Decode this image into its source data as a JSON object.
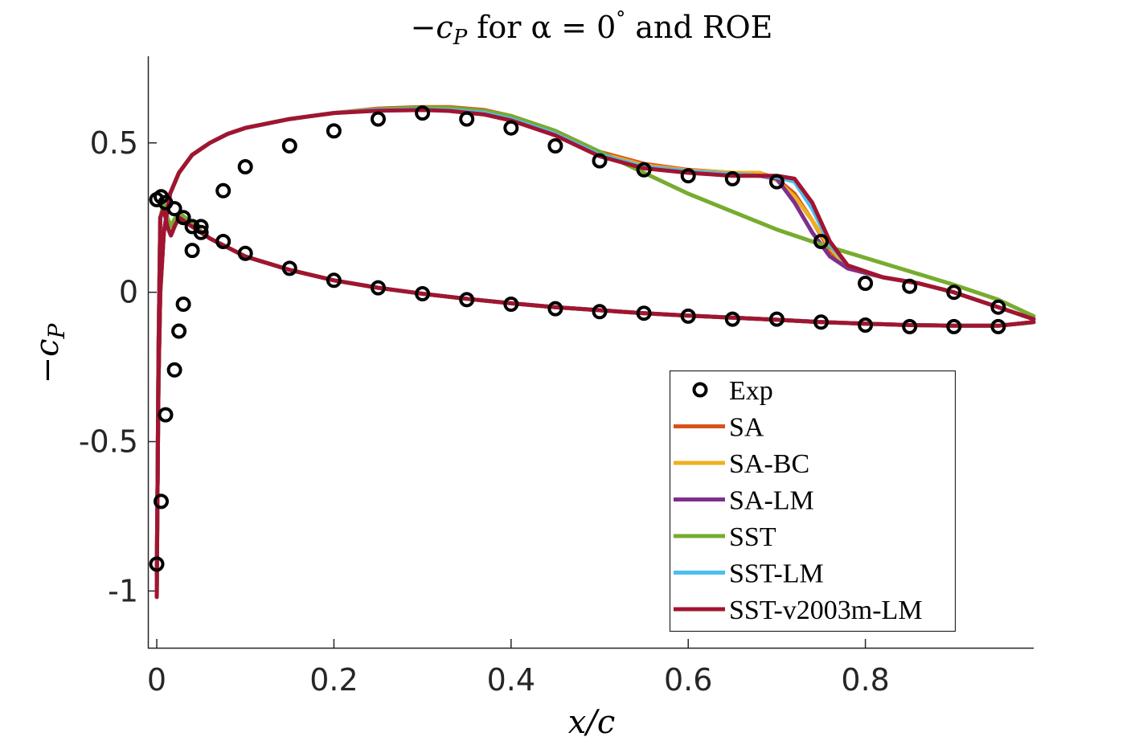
{
  "chart_data": {
    "type": "line",
    "title": "−c_P for α = 0° and ROE",
    "title_parts": {
      "lhs": "−c",
      "lhs_sub": "P",
      "mid": " for α = 0",
      "deg": "°",
      "rhs": " and ROE"
    },
    "xlabel": "x/c",
    "ylabel": "−c_P",
    "ylabel_parts": {
      "main": "−c",
      "sub": "P"
    },
    "xlim": [
      -0.01,
      0.99
    ],
    "ylim": [
      -1.19,
      0.79
    ],
    "xticks": [
      0,
      0.2,
      0.4,
      0.6,
      0.8
    ],
    "xtick_labels": [
      "0",
      "0.2",
      "0.4",
      "0.6",
      "0.8"
    ],
    "yticks": [
      -1,
      -0.5,
      0,
      0.5
    ],
    "ytick_labels": [
      "-1",
      "-0.5",
      "0",
      "0.5"
    ],
    "legend_position": "bottom-right",
    "legend": [
      "Exp",
      "SA",
      "SA-BC",
      "SA-LM",
      "SST",
      "SST-LM",
      "SST-v2003m-LM"
    ],
    "experimental": {
      "name": "Exp",
      "color": "#000000",
      "x": [
        0.0,
        0.005,
        0.01,
        0.02,
        0.03,
        0.04,
        0.05,
        0.075,
        0.1,
        0.15,
        0.2,
        0.25,
        0.3,
        0.35,
        0.4,
        0.45,
        0.5,
        0.55,
        0.6,
        0.65,
        0.7,
        0.75,
        0.8,
        0.85,
        0.9,
        0.95,
        0.0,
        0.005,
        0.01,
        0.02,
        0.025,
        0.03,
        0.04,
        0.05,
        0.075,
        0.1,
        0.15,
        0.2,
        0.25,
        0.3,
        0.35,
        0.4,
        0.45,
        0.5,
        0.55,
        0.6,
        0.65,
        0.7,
        0.75,
        0.8,
        0.85,
        0.9,
        0.95
      ],
      "y": [
        0.31,
        0.32,
        0.3,
        0.28,
        0.25,
        0.22,
        0.2,
        0.17,
        0.13,
        0.08,
        0.04,
        0.015,
        -0.005,
        -0.025,
        -0.04,
        -0.055,
        -0.065,
        -0.07,
        -0.08,
        -0.09,
        -0.09,
        -0.1,
        -0.11,
        -0.115,
        -0.115,
        -0.115,
        -0.91,
        -0.7,
        -0.41,
        -0.26,
        -0.13,
        -0.04,
        0.14,
        0.22,
        0.34,
        0.42,
        0.49,
        0.54,
        0.58,
        0.6,
        0.58,
        0.55,
        0.49,
        0.44,
        0.41,
        0.39,
        0.38,
        0.37,
        0.17,
        0.03,
        0.02,
        0.0,
        -0.05
      ]
    },
    "series": [
      {
        "name": "SA",
        "color": "#D95319",
        "upper": {
          "x": [
            0.0,
            0.002,
            0.004,
            0.008,
            0.015,
            0.025,
            0.04,
            0.06,
            0.08,
            0.1,
            0.15,
            0.2,
            0.25,
            0.3,
            0.33,
            0.37,
            0.4,
            0.45,
            0.5,
            0.55,
            0.6,
            0.65,
            0.68,
            0.7,
            0.72,
            0.74,
            0.76,
            0.78,
            0.82,
            0.86,
            0.9,
            0.95,
            0.99
          ],
          "y": [
            -0.95,
            -0.3,
            0.0,
            0.2,
            0.33,
            0.4,
            0.46,
            0.5,
            0.53,
            0.55,
            0.58,
            0.6,
            0.615,
            0.62,
            0.62,
            0.61,
            0.59,
            0.54,
            0.47,
            0.43,
            0.41,
            0.4,
            0.4,
            0.38,
            0.33,
            0.24,
            0.14,
            0.08,
            0.05,
            0.03,
            0.0,
            -0.05,
            -0.09
          ]
        },
        "lower": {
          "x": [
            0.0,
            0.002,
            0.004,
            0.008,
            0.012,
            0.016,
            0.02,
            0.025,
            0.03,
            0.04,
            0.06,
            0.08,
            0.1,
            0.15,
            0.2,
            0.25,
            0.3,
            0.35,
            0.4,
            0.45,
            0.5,
            0.55,
            0.6,
            0.65,
            0.7,
            0.75,
            0.8,
            0.85,
            0.9,
            0.95,
            0.99
          ],
          "y": [
            -1.02,
            -0.2,
            0.25,
            0.28,
            0.22,
            0.19,
            0.22,
            0.25,
            0.24,
            0.22,
            0.18,
            0.15,
            0.12,
            0.075,
            0.04,
            0.015,
            -0.005,
            -0.022,
            -0.037,
            -0.05,
            -0.06,
            -0.07,
            -0.078,
            -0.085,
            -0.092,
            -0.1,
            -0.105,
            -0.11,
            -0.112,
            -0.112,
            -0.1
          ]
        }
      },
      {
        "name": "SA-BC",
        "color": "#EDB120",
        "upper": {
          "x": [
            0.0,
            0.002,
            0.004,
            0.008,
            0.015,
            0.025,
            0.04,
            0.06,
            0.08,
            0.1,
            0.15,
            0.2,
            0.25,
            0.3,
            0.33,
            0.37,
            0.4,
            0.45,
            0.5,
            0.55,
            0.6,
            0.65,
            0.68,
            0.7,
            0.72,
            0.74,
            0.76,
            0.78,
            0.82,
            0.86,
            0.9,
            0.95,
            0.99
          ],
          "y": [
            -0.95,
            -0.3,
            0.0,
            0.2,
            0.33,
            0.4,
            0.46,
            0.5,
            0.53,
            0.55,
            0.58,
            0.6,
            0.612,
            0.615,
            0.615,
            0.605,
            0.585,
            0.535,
            0.465,
            0.425,
            0.408,
            0.4,
            0.4,
            0.375,
            0.32,
            0.24,
            0.15,
            0.08,
            0.05,
            0.03,
            0.0,
            -0.05,
            -0.09
          ]
        },
        "lower": {
          "x": [
            0.0,
            0.002,
            0.004,
            0.008,
            0.012,
            0.016,
            0.02,
            0.025,
            0.03,
            0.04,
            0.06,
            0.08,
            0.1,
            0.15,
            0.2,
            0.25,
            0.3,
            0.35,
            0.4,
            0.45,
            0.5,
            0.55,
            0.6,
            0.65,
            0.7,
            0.75,
            0.8,
            0.85,
            0.9,
            0.95,
            0.99
          ],
          "y": [
            -1.02,
            -0.2,
            0.25,
            0.28,
            0.22,
            0.19,
            0.22,
            0.25,
            0.24,
            0.22,
            0.18,
            0.15,
            0.12,
            0.075,
            0.04,
            0.015,
            -0.005,
            -0.022,
            -0.037,
            -0.05,
            -0.06,
            -0.07,
            -0.078,
            -0.085,
            -0.092,
            -0.1,
            -0.105,
            -0.11,
            -0.112,
            -0.112,
            -0.1
          ]
        }
      },
      {
        "name": "SA-LM",
        "color": "#7E2F8E",
        "upper": {
          "x": [
            0.0,
            0.002,
            0.004,
            0.008,
            0.015,
            0.025,
            0.04,
            0.06,
            0.08,
            0.1,
            0.15,
            0.2,
            0.25,
            0.3,
            0.33,
            0.37,
            0.4,
            0.45,
            0.5,
            0.55,
            0.6,
            0.65,
            0.68,
            0.7,
            0.72,
            0.74,
            0.76,
            0.78,
            0.82,
            0.86,
            0.9,
            0.95,
            0.99
          ],
          "y": [
            -0.95,
            -0.3,
            0.0,
            0.2,
            0.33,
            0.4,
            0.46,
            0.5,
            0.53,
            0.55,
            0.58,
            0.6,
            0.61,
            0.612,
            0.61,
            0.6,
            0.58,
            0.53,
            0.46,
            0.42,
            0.405,
            0.395,
            0.39,
            0.38,
            0.3,
            0.2,
            0.12,
            0.08,
            0.05,
            0.03,
            0.0,
            -0.05,
            -0.09
          ]
        },
        "lower": {
          "x": [
            0.0,
            0.002,
            0.004,
            0.008,
            0.012,
            0.016,
            0.02,
            0.025,
            0.03,
            0.04,
            0.06,
            0.08,
            0.1,
            0.15,
            0.2,
            0.25,
            0.3,
            0.35,
            0.4,
            0.45,
            0.5,
            0.55,
            0.6,
            0.65,
            0.7,
            0.75,
            0.8,
            0.85,
            0.9,
            0.95,
            0.99
          ],
          "y": [
            -1.02,
            -0.2,
            0.25,
            0.28,
            0.22,
            0.19,
            0.22,
            0.25,
            0.24,
            0.22,
            0.18,
            0.15,
            0.12,
            0.075,
            0.04,
            0.015,
            -0.005,
            -0.022,
            -0.037,
            -0.05,
            -0.06,
            -0.07,
            -0.078,
            -0.085,
            -0.092,
            -0.1,
            -0.105,
            -0.11,
            -0.112,
            -0.112,
            -0.1
          ]
        }
      },
      {
        "name": "SST",
        "color": "#77AC30",
        "upper": {
          "x": [
            0.0,
            0.002,
            0.004,
            0.008,
            0.015,
            0.025,
            0.04,
            0.06,
            0.08,
            0.1,
            0.15,
            0.2,
            0.25,
            0.3,
            0.33,
            0.37,
            0.4,
            0.45,
            0.5,
            0.55,
            0.6,
            0.65,
            0.7,
            0.75,
            0.8,
            0.85,
            0.9,
            0.95,
            0.99
          ],
          "y": [
            -0.95,
            -0.3,
            0.0,
            0.2,
            0.33,
            0.4,
            0.46,
            0.5,
            0.53,
            0.55,
            0.58,
            0.6,
            0.612,
            0.618,
            0.617,
            0.607,
            0.59,
            0.54,
            0.47,
            0.4,
            0.33,
            0.27,
            0.21,
            0.16,
            0.115,
            0.07,
            0.025,
            -0.025,
            -0.08
          ]
        },
        "lower": {
          "x": [
            0.0,
            0.002,
            0.004,
            0.008,
            0.012,
            0.016,
            0.02,
            0.025,
            0.03,
            0.04,
            0.06,
            0.08,
            0.1,
            0.15,
            0.2,
            0.25,
            0.3,
            0.35,
            0.4,
            0.45,
            0.5,
            0.55,
            0.6,
            0.65,
            0.7,
            0.75,
            0.8,
            0.85,
            0.9,
            0.95,
            0.99
          ],
          "y": [
            -1.02,
            -0.2,
            0.25,
            0.3,
            0.25,
            0.22,
            0.245,
            0.265,
            0.255,
            0.23,
            0.18,
            0.15,
            0.12,
            0.075,
            0.04,
            0.015,
            -0.005,
            -0.022,
            -0.037,
            -0.05,
            -0.06,
            -0.07,
            -0.078,
            -0.085,
            -0.092,
            -0.1,
            -0.105,
            -0.11,
            -0.112,
            -0.112,
            -0.1
          ]
        }
      },
      {
        "name": "SST-LM",
        "color": "#4DBEEE",
        "upper": {
          "x": [
            0.0,
            0.002,
            0.004,
            0.008,
            0.015,
            0.025,
            0.04,
            0.06,
            0.08,
            0.1,
            0.15,
            0.2,
            0.25,
            0.3,
            0.33,
            0.37,
            0.4,
            0.45,
            0.5,
            0.55,
            0.6,
            0.65,
            0.68,
            0.7,
            0.72,
            0.74,
            0.76,
            0.78,
            0.82,
            0.86,
            0.9,
            0.95,
            0.99
          ],
          "y": [
            -0.95,
            -0.3,
            0.0,
            0.2,
            0.33,
            0.4,
            0.46,
            0.5,
            0.53,
            0.55,
            0.58,
            0.6,
            0.61,
            0.612,
            0.61,
            0.6,
            0.58,
            0.53,
            0.46,
            0.42,
            0.405,
            0.395,
            0.39,
            0.385,
            0.37,
            0.28,
            0.16,
            0.09,
            0.05,
            0.03,
            0.0,
            -0.05,
            -0.09
          ]
        },
        "lower": {
          "x": [
            0.0,
            0.002,
            0.004,
            0.008,
            0.012,
            0.016,
            0.02,
            0.025,
            0.03,
            0.04,
            0.06,
            0.08,
            0.1,
            0.15,
            0.2,
            0.25,
            0.3,
            0.35,
            0.4,
            0.45,
            0.5,
            0.55,
            0.6,
            0.65,
            0.7,
            0.75,
            0.8,
            0.85,
            0.9,
            0.95,
            0.99
          ],
          "y": [
            -1.02,
            -0.2,
            0.25,
            0.28,
            0.22,
            0.19,
            0.22,
            0.25,
            0.24,
            0.22,
            0.18,
            0.15,
            0.12,
            0.075,
            0.04,
            0.015,
            -0.005,
            -0.022,
            -0.037,
            -0.05,
            -0.06,
            -0.07,
            -0.078,
            -0.085,
            -0.092,
            -0.1,
            -0.105,
            -0.11,
            -0.112,
            -0.112,
            -0.1
          ]
        }
      },
      {
        "name": "SST-v2003m-LM",
        "color": "#A2142F",
        "upper": {
          "x": [
            0.0,
            0.002,
            0.004,
            0.008,
            0.015,
            0.025,
            0.04,
            0.06,
            0.08,
            0.1,
            0.15,
            0.2,
            0.25,
            0.3,
            0.33,
            0.37,
            0.4,
            0.45,
            0.5,
            0.55,
            0.6,
            0.65,
            0.68,
            0.7,
            0.72,
            0.74,
            0.76,
            0.78,
            0.82,
            0.86,
            0.9,
            0.95,
            0.99
          ],
          "y": [
            -0.95,
            -0.3,
            0.0,
            0.2,
            0.33,
            0.4,
            0.46,
            0.5,
            0.53,
            0.55,
            0.58,
            0.6,
            0.608,
            0.61,
            0.607,
            0.595,
            0.575,
            0.525,
            0.455,
            0.415,
            0.4,
            0.39,
            0.39,
            0.39,
            0.38,
            0.3,
            0.17,
            0.09,
            0.05,
            0.03,
            0.0,
            -0.05,
            -0.09
          ]
        },
        "lower": {
          "x": [
            0.0,
            0.002,
            0.004,
            0.008,
            0.012,
            0.016,
            0.02,
            0.025,
            0.03,
            0.04,
            0.06,
            0.08,
            0.1,
            0.15,
            0.2,
            0.25,
            0.3,
            0.35,
            0.4,
            0.45,
            0.5,
            0.55,
            0.6,
            0.65,
            0.7,
            0.75,
            0.8,
            0.85,
            0.9,
            0.95,
            0.99
          ],
          "y": [
            -1.02,
            -0.2,
            0.25,
            0.28,
            0.22,
            0.19,
            0.22,
            0.25,
            0.24,
            0.22,
            0.18,
            0.15,
            0.12,
            0.075,
            0.04,
            0.015,
            -0.005,
            -0.022,
            -0.037,
            -0.05,
            -0.06,
            -0.07,
            -0.078,
            -0.085,
            -0.092,
            -0.1,
            -0.105,
            -0.11,
            -0.112,
            -0.112,
            -0.1
          ]
        }
      }
    ]
  }
}
